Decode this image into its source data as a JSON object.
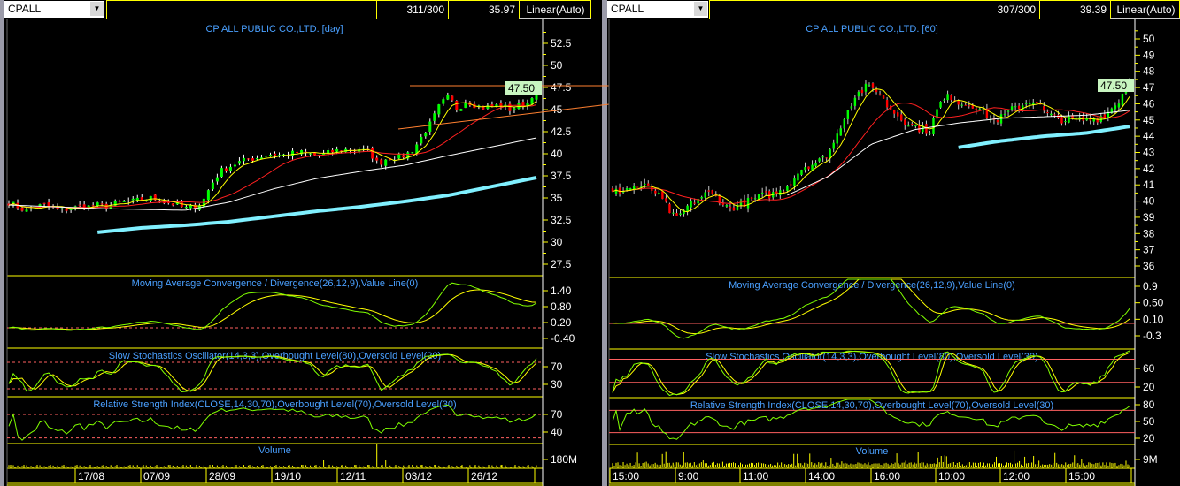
{
  "colors": {
    "background": "#000000",
    "grid": "#ffff00",
    "title": "#4aa0ff",
    "axis_text": "#ffffff",
    "up": "#00ff00",
    "down": "#ff0000",
    "ma_short": "#ffff00",
    "ma_mid": "#ff2020",
    "ma_long": "#ffffff",
    "ma_very_long": "#80f0ff",
    "trendline": "#ff8030",
    "level_line": "#ff6060",
    "last_price_bg": "#c8f5c0",
    "volume": "#ffff00"
  },
  "left": {
    "symbol": "CPALL",
    "symbol_dropdown_icon": "chevron-down-icon",
    "bars": "311/300",
    "cursor_value": "35.97",
    "scale_mode": "Linear(Auto)",
    "title": "CP ALL PUBLIC CO.,LTD. [day]",
    "last_price": "47.50",
    "price_ticks": [
      "52.5",
      "50",
      "47.5",
      "45",
      "42.5",
      "40",
      "37.5",
      "35",
      "32.5",
      "30",
      "27.5"
    ],
    "macd_title": "Moving Average Convergence / Divergence(26,12,9),Value Line(0)",
    "macd_ticks": [
      "1.40",
      "0.80",
      "0.20",
      "-0.40"
    ],
    "stoch_title": "Slow Stochastics Oscillator(14,3,3),Overbought Level(80),Oversold Level(20)",
    "stoch_ticks": [
      "70",
      "30"
    ],
    "rsi_title": "Relative Strength Index(CLOSE,14,30,70),Overbought Level(70),Oversold Level(30)",
    "rsi_ticks": [
      "70",
      "40"
    ],
    "volume_title": "Volume",
    "volume_ticks": [
      "180M"
    ],
    "time_labels": [
      "17/08",
      "07/09",
      "28/09",
      "19/10",
      "12/11",
      "03/12",
      "26/12"
    ]
  },
  "right": {
    "symbol": "CPALL",
    "symbol_dropdown_icon": "chevron-down-icon",
    "bars": "307/300",
    "cursor_value": "39.39",
    "scale_mode": "Linear(Auto)",
    "title": "CP ALL PUBLIC CO.,LTD. [60]",
    "last_price": "47.50",
    "price_ticks": [
      "50",
      "49",
      "48",
      "47",
      "46",
      "45",
      "44",
      "43",
      "42",
      "41",
      "40",
      "39",
      "38",
      "37",
      "36"
    ],
    "macd_title": "Moving Average Convergence / Divergence(26,12,9),Value Line(0)",
    "macd_ticks": [
      "0.9",
      "0.50",
      "0.10",
      "-0.3"
    ],
    "stoch_title": "Slow Stochastics Oscillator(14,3,3),Overbought Level(80),Oversold Level(30)",
    "stoch_ticks": [
      "60",
      "20"
    ],
    "rsi_title": "Relative Strength Index(CLOSE,14,30,70),Overbought Level(70),Oversold Level(30)",
    "rsi_ticks": [
      "80",
      "50",
      "20"
    ],
    "volume_title": "Volume",
    "volume_ticks": [
      "9M"
    ],
    "time_labels": [
      "15:00",
      "9:00",
      "11:00",
      "14:00",
      "16:00",
      "10:00",
      "12:00",
      "15:00"
    ]
  },
  "chart_data": [
    {
      "type": "candlestick",
      "title": "CP ALL PUBLIC CO.,LTD. [day]",
      "ylim": [
        27.5,
        52.5
      ],
      "close": [
        34.5,
        34,
        33.5,
        34,
        34.2,
        33.8,
        33.6,
        33.8,
        34,
        34,
        34.2,
        34,
        34.3,
        34.5,
        34.6,
        34.8,
        35,
        34.8,
        34.5,
        34.2,
        33.8,
        34,
        34.5,
        36.5,
        38,
        38.5,
        39,
        39.3,
        39.5,
        39.8,
        40,
        39.8,
        40,
        40.2,
        40,
        39.8,
        40,
        40.3,
        40.5,
        40.4,
        40.6,
        40.2,
        38.8,
        39.5,
        39.6,
        39.8,
        40.5,
        42,
        43.5,
        45.5,
        46.5,
        45,
        46,
        45.5,
        45.2,
        45.4,
        45.5,
        45,
        45.5,
        45.8,
        47.5
      ],
      "ma_long": [
        34.2,
        34,
        33.8,
        33.7,
        33.6,
        34.5,
        36,
        37.2,
        38,
        38.7,
        39.8,
        40.8,
        41.8
      ],
      "ma_very_long": [
        null,
        null,
        31.1,
        31.6,
        31.9,
        32.3,
        32.9,
        33.5,
        34,
        34.6,
        35.3,
        36.3,
        37.3
      ],
      "trendlines": [
        {
          "from": 47.7,
          "to": 47.7,
          "kind": "resistance"
        },
        {
          "from": 42.8,
          "to": 45.6,
          "kind": "support"
        }
      ],
      "macd_levels": [
        0
      ],
      "stoch_levels": [
        80,
        20
      ],
      "rsi_levels": [
        70,
        30
      ]
    },
    {
      "type": "candlestick",
      "title": "CP ALL PUBLIC CO.,LTD. [60]",
      "ylim": [
        36,
        50
      ],
      "close": [
        40.5,
        40.7,
        40.9,
        40.9,
        40.6,
        39.8,
        38.8,
        39.6,
        40.1,
        40.5,
        40.2,
        39.5,
        39.8,
        40,
        40.3,
        40.4,
        40.6,
        41.3,
        42.1,
        42.3,
        42.6,
        43.6,
        45.3,
        46.5,
        47,
        46.9,
        45.9,
        45.3,
        44.8,
        44.5,
        44.3,
        46,
        46.5,
        46,
        46,
        45.6,
        44.9,
        45.2,
        45.7,
        46,
        46.3,
        45.4,
        45.1,
        45,
        45,
        45,
        45.1,
        45.5,
        46.2,
        47.5
      ],
      "ma_long": [
        null,
        null,
        null,
        null,
        40.3,
        41.5,
        43.5,
        44.4,
        44.8,
        45.1,
        45.2,
        45.3,
        45.6
      ],
      "ma_very_long": [
        null,
        null,
        null,
        null,
        null,
        null,
        null,
        null,
        43.3,
        43.7,
        44,
        44.2,
        44.6
      ],
      "macd_levels": [
        0
      ],
      "stoch_levels": [
        80,
        30
      ],
      "rsi_levels": [
        70,
        30
      ]
    }
  ]
}
